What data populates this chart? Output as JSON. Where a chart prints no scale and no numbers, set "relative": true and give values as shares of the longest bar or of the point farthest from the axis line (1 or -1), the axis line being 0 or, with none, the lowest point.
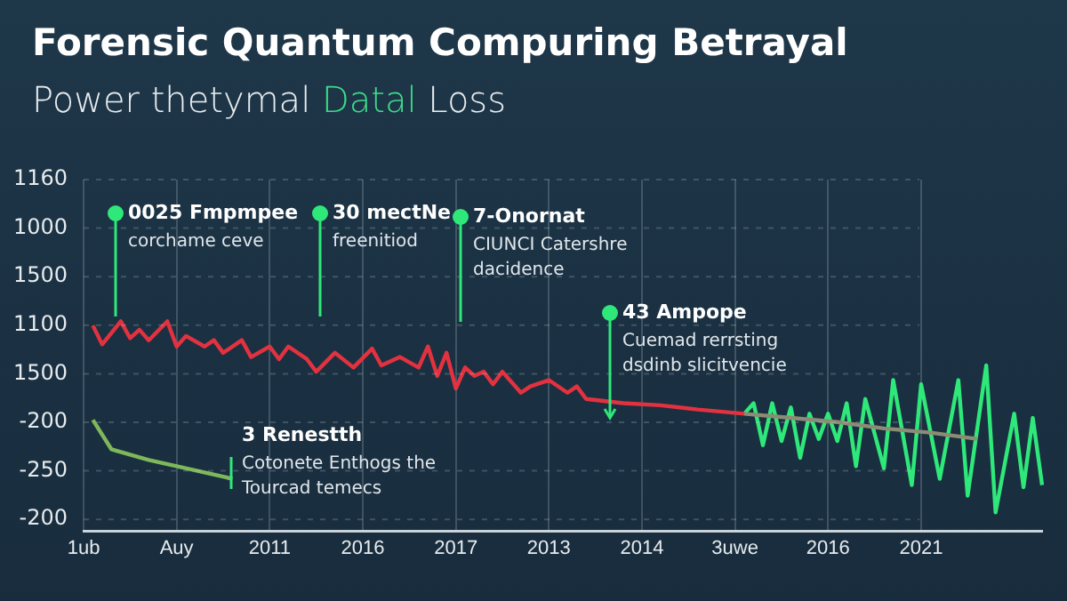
{
  "chart_data": {
    "type": "line",
    "title": "Forensic Quantum Compuring Betrayal",
    "subtitle": "Power thetymal Datal Loss",
    "relative": true,
    "grid": "x",
    "legend": false,
    "marker": "none",
    "categories": [
      "1ub",
      null,
      null,
      null,
      null,
      null,
      null,
      null,
      null,
      null,
      "Auy",
      null,
      null,
      null,
      null,
      null,
      null,
      null,
      null,
      null,
      "2011",
      null,
      null,
      null,
      null,
      null,
      null,
      null,
      null,
      null,
      "2016",
      null,
      null,
      null,
      null,
      null,
      null,
      null,
      null,
      null,
      "2017",
      null,
      null,
      null,
      null,
      null,
      null,
      null,
      null,
      null,
      "2013",
      null,
      null,
      null,
      null,
      null,
      null,
      null,
      null,
      null,
      "2014",
      null,
      null,
      null,
      null,
      null,
      null,
      null,
      null,
      null,
      "3uwe",
      null,
      null,
      null,
      null,
      null,
      null,
      null,
      null,
      null,
      "2016",
      null,
      null,
      null,
      null,
      null,
      null,
      null,
      null,
      null,
      "2021",
      null,
      null,
      null,
      null,
      null,
      null,
      null,
      null,
      null,
      null,
      null,
      null,
      null
    ],
    "series": [
      {
        "color": "#e3323f",
        "values": [
          null,
          0.98,
          0.89,
          null,
          1.0,
          0.92,
          0.96,
          0.91,
          null,
          1.0,
          0.88,
          0.93,
          null,
          0.88,
          0.91,
          0.85,
          null,
          0.91,
          0.83,
          null,
          0.88,
          0.82,
          0.88,
          null,
          0.82,
          0.76,
          null,
          0.85,
          null,
          0.78,
          null,
          0.87,
          0.79,
          null,
          0.83,
          null,
          0.78,
          0.88,
          0.74,
          0.85,
          0.68,
          0.78,
          0.74,
          0.76,
          0.7,
          0.76,
          null,
          0.66,
          0.69,
          null,
          0.72,
          null,
          0.66,
          0.69,
          0.63,
          null,
          null,
          null,
          0.61,
          null,
          null,
          null,
          0.6,
          null,
          null,
          null,
          0.58,
          null,
          null,
          null,
          null,
          0.56,
          null,
          null,
          null,
          null,
          null,
          null,
          null,
          null,
          null,
          null,
          null,
          null,
          null,
          null,
          null,
          null,
          null,
          null,
          null,
          null,
          null,
          null,
          null,
          null,
          null,
          null,
          null,
          null,
          null,
          null,
          null,
          null
        ]
      },
      {
        "color": "#8c8c74",
        "values": [
          null,
          null,
          null,
          null,
          null,
          null,
          null,
          null,
          null,
          null,
          null,
          null,
          null,
          null,
          null,
          null,
          null,
          null,
          null,
          null,
          null,
          null,
          null,
          null,
          null,
          null,
          null,
          null,
          null,
          null,
          null,
          null,
          null,
          null,
          null,
          null,
          null,
          null,
          null,
          null,
          null,
          null,
          null,
          null,
          null,
          null,
          null,
          null,
          null,
          null,
          null,
          null,
          null,
          null,
          null,
          null,
          null,
          null,
          null,
          null,
          null,
          null,
          null,
          null,
          null,
          null,
          null,
          null,
          null,
          null,
          null,
          0.56,
          null,
          null,
          null,
          null,
          0.54,
          null,
          null,
          null,
          null,
          0.52,
          null,
          null,
          null,
          null,
          0.49,
          null,
          null,
          null,
          null,
          0.47,
          null,
          null,
          null,
          null,
          0.44,
          null,
          null,
          null,
          null,
          null,
          null,
          null
        ]
      },
      {
        "color": "#2ee87a",
        "values": [
          null,
          null,
          null,
          null,
          null,
          null,
          null,
          null,
          null,
          null,
          null,
          null,
          null,
          null,
          null,
          null,
          null,
          null,
          null,
          null,
          null,
          null,
          null,
          null,
          null,
          null,
          null,
          null,
          null,
          null,
          null,
          null,
          null,
          null,
          null,
          null,
          null,
          null,
          null,
          null,
          null,
          null,
          null,
          null,
          null,
          null,
          null,
          null,
          null,
          null,
          null,
          null,
          null,
          null,
          null,
          null,
          null,
          null,
          null,
          null,
          null,
          null,
          null,
          null,
          null,
          null,
          null,
          null,
          null,
          null,
          null,
          0.56,
          0.61,
          0.41,
          0.61,
          0.43,
          0.59,
          0.35,
          0.56,
          0.44,
          0.56,
          0.43,
          0.61,
          0.31,
          0.63,
          null,
          0.3,
          0.72,
          null,
          0.22,
          0.7,
          null,
          0.25,
          null,
          0.72,
          0.17,
          null,
          0.79,
          0.09,
          null,
          0.56,
          0.21,
          0.54,
          0.22
        ]
      },
      {
        "color": "#7fb85a",
        "values": [
          null,
          0.53,
          null,
          0.39,
          null,
          null,
          null,
          0.34,
          null,
          null,
          0.31,
          null,
          null,
          null,
          null,
          null,
          0.25,
          null,
          null,
          null,
          null,
          null,
          null,
          null,
          null,
          null,
          null,
          null,
          null,
          null,
          null,
          null,
          null,
          null,
          null,
          null,
          null,
          null,
          null,
          null,
          null,
          null,
          null,
          null,
          null,
          null,
          null,
          null,
          null,
          null,
          null,
          null,
          null,
          null,
          null,
          null,
          null,
          null,
          null,
          null,
          null,
          null,
          null,
          null,
          null,
          null,
          null,
          null,
          null,
          null,
          null,
          null,
          null,
          null,
          null,
          null,
          null,
          null,
          null,
          null,
          null,
          null,
          null,
          null,
          null,
          null,
          null,
          null,
          null,
          null,
          null,
          null,
          null,
          null,
          null,
          null,
          null,
          null,
          null,
          null,
          null,
          null,
          null,
          null
        ]
      }
    ],
    "annotations": [
      "1160",
      "1000",
      "1500",
      "1100",
      "1500",
      "-200",
      "-250",
      "-200",
      "0025 Fmpmpee\ncorchame ceve",
      "30 mectNe\nfreenitiod",
      "7-Onornat\nCIUNCI Catershre\ndacidence",
      "43 Ampope\nCuemad rerrsting\ndsdinb slicitvencie",
      "3 Renestth\nCotonete Enthogs the\nTourcad temecs"
    ]
  }
}
